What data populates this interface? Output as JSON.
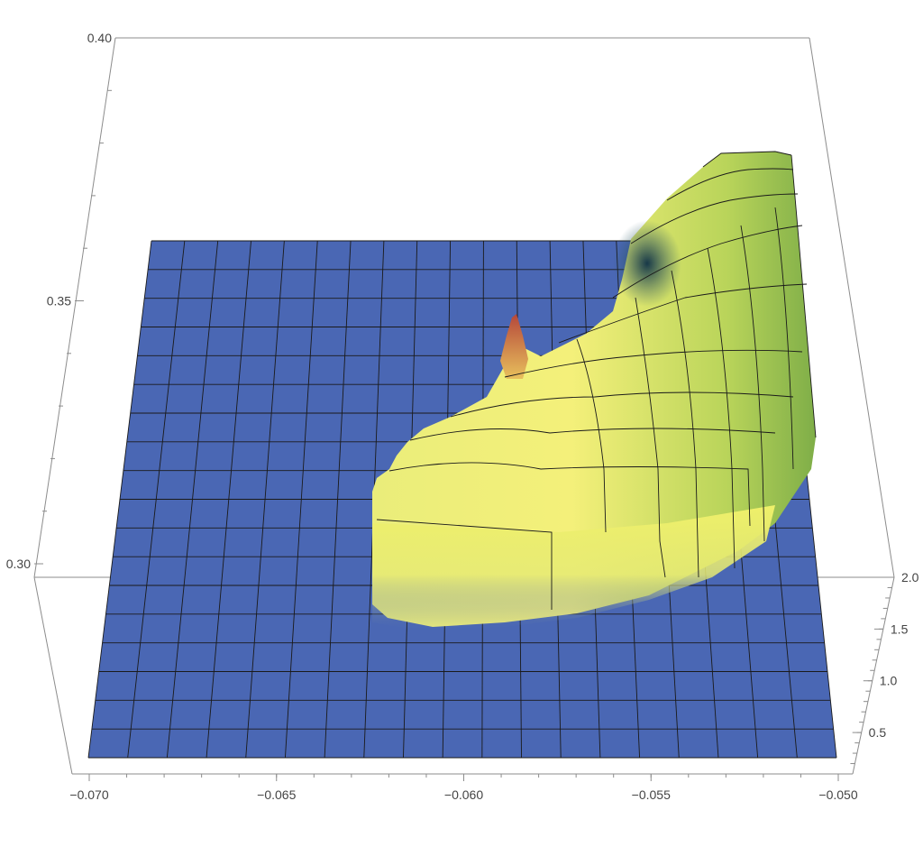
{
  "chart_data": {
    "type": "surface3d",
    "title": "",
    "axes": {
      "x": {
        "range": [
          -0.07,
          -0.05
        ],
        "ticks": [
          -0.07,
          -0.065,
          -0.06,
          -0.055,
          -0.05
        ],
        "tick_labels": [
          "−0.070",
          "−0.065",
          "−0.060",
          "−0.055",
          "−0.050"
        ]
      },
      "y": {
        "range": [
          0.1,
          2.0
        ],
        "ticks": [
          0.5,
          1.0,
          1.5,
          2.0
        ],
        "tick_labels": [
          "0.5",
          "1.0",
          "1.5",
          "2.0"
        ]
      },
      "z": {
        "range": [
          0.28,
          0.4
        ],
        "ticks": [
          0.3,
          0.35,
          0.4
        ],
        "tick_labels": [
          "0.30",
          "0.35",
          "0.40"
        ]
      }
    },
    "surface": {
      "description_free": true,
      "baseline_z": 0.33,
      "ridge_peak_z": 0.37,
      "spike_peak_z": 0.345,
      "colormap": [
        "#3f5fad",
        "#f2f06e",
        "#8cb84a",
        "#1d4f5e",
        "#b34a3a"
      ]
    }
  }
}
